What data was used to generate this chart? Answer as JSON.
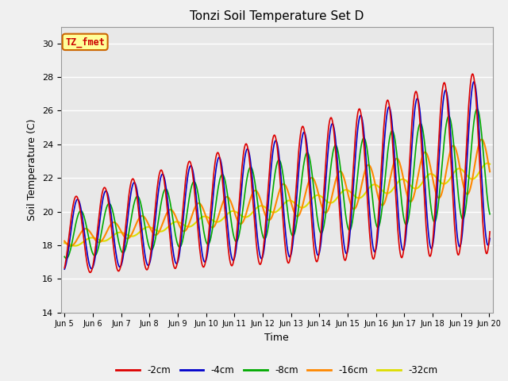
{
  "title": "Tonzi Soil Temperature Set D",
  "xlabel": "Time",
  "ylabel": "Soil Temperature (C)",
  "ylim": [
    14,
    31
  ],
  "bg_color": "#f0f0f0",
  "plot_bg_color": "#e8e8e8",
  "annotation_text": "TZ_fmet",
  "annotation_color": "#cc0000",
  "annotation_bg": "#ffff99",
  "annotation_border": "#cc6600",
  "series": [
    {
      "label": "-2cm",
      "color": "#dd0000"
    },
    {
      "label": "-4cm",
      "color": "#0000cc"
    },
    {
      "label": "-8cm",
      "color": "#00aa00"
    },
    {
      "label": "-16cm",
      "color": "#ff8800"
    },
    {
      "label": "-32cm",
      "color": "#dddd00"
    }
  ],
  "xtick_labels": [
    "Jun 5",
    "Jun 6",
    "Jun 7",
    "Jun 8",
    "Jun 9",
    "Jun 10",
    "Jun 11",
    "Jun 12",
    "Jun 13",
    "Jun 14",
    "Jun 15",
    "Jun 16",
    "Jun 17",
    "Jun 18",
    "Jun 19",
    "Jun 20"
  ],
  "xtick_positions": [
    0,
    24,
    48,
    72,
    96,
    120,
    144,
    168,
    192,
    216,
    240,
    264,
    288,
    312,
    336,
    360
  ],
  "ytick_labels": [
    "14",
    "16",
    "18",
    "20",
    "22",
    "24",
    "26",
    "28",
    "30"
  ],
  "ytick_positions": [
    14,
    16,
    18,
    20,
    22,
    24,
    26,
    28,
    30
  ]
}
